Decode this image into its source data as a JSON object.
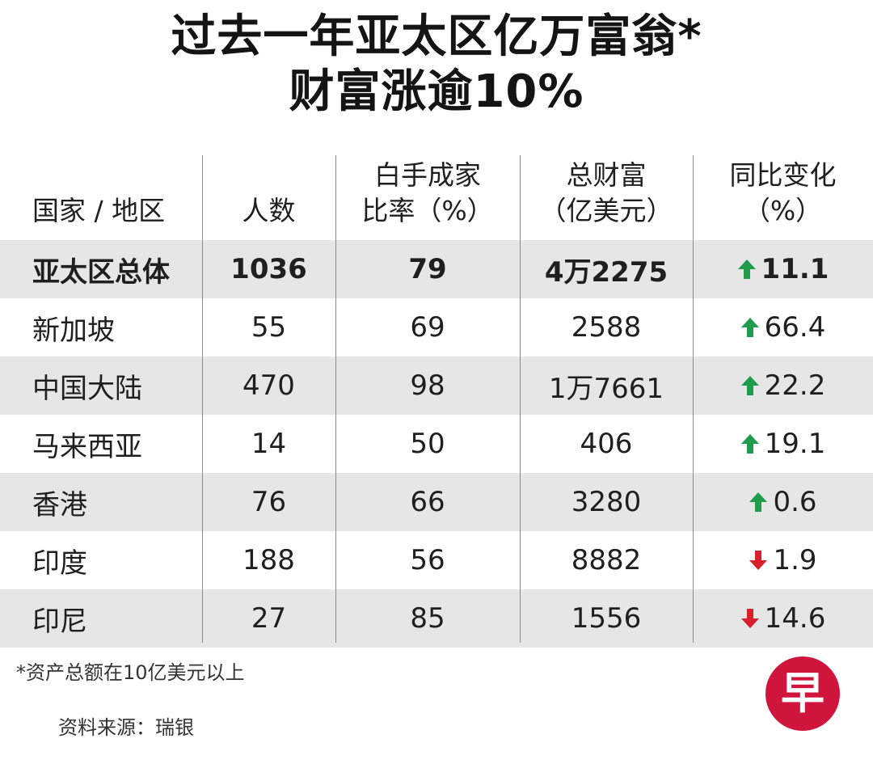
{
  "title_line1": "过去一年亚太区亿万富翁*",
  "title_line2": "财富涨逾10%",
  "colors": {
    "up": "#1f9c4c",
    "down": "#d81f2a",
    "shade": "#e6e6e6",
    "logo": "#d0153d"
  },
  "chart_data": {
    "type": "table",
    "columns": [
      {
        "line1": "国家 / 地区",
        "line2": ""
      },
      {
        "line1": "人数",
        "line2": ""
      },
      {
        "line1": "白手成家",
        "line2": "比率（%）"
      },
      {
        "line1": "总财富",
        "line2": "（亿美元）"
      },
      {
        "line1": "同比变化",
        "line2": "（%）"
      }
    ],
    "rows": [
      {
        "region": "亚太区总体",
        "count": "1036",
        "selfmade": "79",
        "wealth": "4万2275",
        "direction": "up",
        "change": "11.1"
      },
      {
        "region": "新加坡",
        "count": "55",
        "selfmade": "69",
        "wealth": "2588",
        "direction": "up",
        "change": "66.4"
      },
      {
        "region": "中国大陆",
        "count": "470",
        "selfmade": "98",
        "wealth": "1万7661",
        "direction": "up",
        "change": "22.2"
      },
      {
        "region": "马来西亚",
        "count": "14",
        "selfmade": "50",
        "wealth": "406",
        "direction": "up",
        "change": "19.1"
      },
      {
        "region": "香港",
        "count": "76",
        "selfmade": "66",
        "wealth": "3280",
        "direction": "up",
        "change": "0.6"
      },
      {
        "region": "印度",
        "count": "188",
        "selfmade": "56",
        "wealth": "8882",
        "direction": "down",
        "change": "1.9"
      },
      {
        "region": "印尼",
        "count": "27",
        "selfmade": "85",
        "wealth": "1556",
        "direction": "down",
        "change": "14.6"
      }
    ]
  },
  "footnote": "*资产总额在10亿美元以上",
  "source": "资料来源：瑞银",
  "logo_char": "早"
}
